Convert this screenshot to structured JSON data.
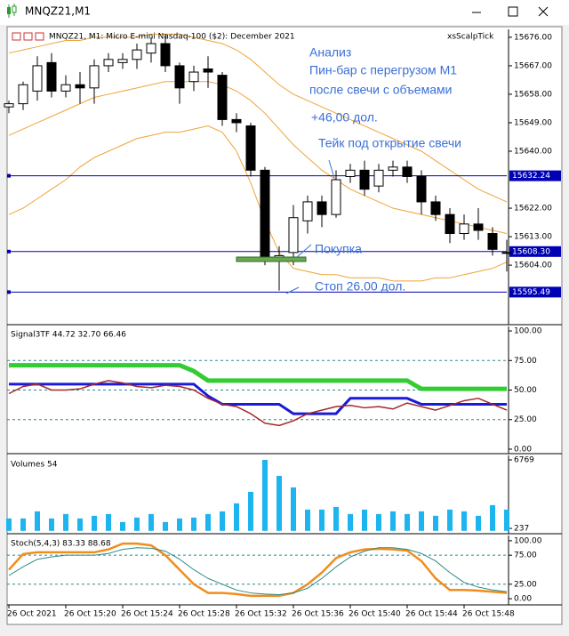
{
  "window_title": "MNQZ21,M1",
  "chart_data": [
    {
      "type": "candlestick",
      "title": "MNQZ21, M1:  Micro E-mini Nasdaq-100 ($2): December 2021",
      "indicator_label": "xsScalpTick",
      "open": [
        15654,
        15655,
        15659,
        15668,
        15659,
        15661,
        15660,
        15667,
        15668,
        15669,
        15671,
        15674,
        15667,
        15662,
        15666,
        15664,
        15650,
        15648,
        15634,
        15606,
        15608,
        15618,
        15624,
        15620,
        15632,
        15634,
        15629,
        15634,
        15635,
        15632,
        15624,
        15620,
        15614,
        15617,
        15614,
        15608
      ],
      "high": [
        15656,
        15662,
        15670,
        15671,
        15664,
        15665,
        15669,
        15671,
        15671,
        15674,
        15676,
        15677,
        15668,
        15667,
        15670,
        15665,
        15652,
        15649,
        15635,
        15610,
        15623,
        15626,
        15626,
        15634,
        15636,
        15637,
        15636,
        15637,
        15637,
        15634,
        15626,
        15622,
        15620,
        15622,
        15616,
        15612
      ],
      "low": [
        15652,
        15653,
        15656,
        15657,
        15657,
        15655,
        15655,
        15665,
        15666,
        15666,
        15668,
        15665,
        15655,
        15659,
        15660,
        15648,
        15646,
        15632,
        15604,
        15596,
        15604,
        15614,
        15616,
        15619,
        15630,
        15626,
        15627,
        15632,
        15630,
        15620,
        15618,
        15611,
        15612,
        15612,
        15607,
        15602
      ],
      "close": [
        15655,
        15661,
        15667,
        15659,
        15661,
        15660,
        15667,
        15669,
        15669,
        15672,
        15674,
        15667,
        15660,
        15665,
        15665,
        15650,
        15649,
        15634,
        15606,
        15607,
        15619,
        15624,
        15620,
        15631,
        15634,
        15628,
        15634,
        15635,
        15632,
        15624,
        15620,
        15614,
        15617,
        15615,
        15609,
        15608
      ],
      "up_color": "#ffffff",
      "down_color": "#000000",
      "series": [
        {
          "color": "#eea43a",
          "values": [
            15671,
            15672,
            15673,
            15674,
            15675,
            15675,
            15676,
            15676,
            15676,
            15676,
            15677,
            15677,
            15677,
            15676,
            15675,
            15674,
            15672,
            15669,
            15665,
            15661,
            15658,
            15656,
            15654,
            15652,
            15650,
            15648,
            15646,
            15644,
            15642,
            15640,
            15637,
            15634,
            15631,
            15628,
            15626,
            15624
          ]
        },
        {
          "color": "#eea43a",
          "values": [
            15645,
            15647,
            15649,
            15651,
            15653,
            15655,
            15657,
            15658,
            15659,
            15660,
            15661,
            15662,
            15662,
            15662,
            15662,
            15661,
            15659,
            15656,
            15652,
            15647,
            15642,
            15638,
            15634,
            15631,
            15628,
            15626,
            15624,
            15622,
            15621,
            15620,
            15619,
            15618,
            15617,
            15616,
            15615,
            15614
          ]
        },
        {
          "color": "#eea43a",
          "values": [
            15620,
            15622,
            15625,
            15628,
            15631,
            15635,
            15638,
            15640,
            15642,
            15644,
            15645,
            15646,
            15646,
            15647,
            15648,
            15646,
            15640,
            15630,
            15618,
            15608,
            15603,
            15602,
            15601,
            15601,
            15600,
            15600,
            15600,
            15599,
            15599,
            15599,
            15600,
            15600,
            15601,
            15602,
            15603,
            15605
          ]
        }
      ],
      "levels": [
        {
          "value": 15632.24,
          "label": "15632.24"
        },
        {
          "value": 15608.3,
          "label": "15608.30"
        },
        {
          "value": 15595.49,
          "label": "15595.49"
        }
      ],
      "level_color": "#0000b4",
      "ylim": [
        15585.2,
        15678.5
      ],
      "yticks": [
        {
          "value": 15676,
          "label": "15676.00"
        },
        {
          "value": 15667,
          "label": "15667.00"
        },
        {
          "value": 15658,
          "label": "15658.00"
        },
        {
          "value": 15649,
          "label": "15649.00"
        },
        {
          "value": 15640,
          "label": "15640.00"
        },
        {
          "value": 15622,
          "label": "15622.00"
        },
        {
          "value": 15613,
          "label": "15613.00"
        },
        {
          "value": 15604,
          "label": "15604.00"
        }
      ],
      "annotations": [
        "Анализ",
        "Пин-бар с перегрузом М1",
        "после свечи с объемами",
        "+46,00 дол.",
        "Тейк под открытие свечи",
        "Покупка",
        "Стоп 26.00 дол."
      ]
    },
    {
      "type": "line",
      "title": "Signal3TF 44.72 32.70 66.46",
      "series": [
        {
          "color": "#33cc33",
          "width": 5,
          "values": [
            71,
            71,
            71,
            71,
            71,
            71,
            71,
            71,
            71,
            71,
            71,
            71,
            71,
            66,
            58,
            58,
            58,
            58,
            58,
            58,
            58,
            58,
            58,
            58,
            58,
            58,
            58,
            58,
            58,
            51,
            51,
            51,
            51,
            51,
            51,
            51
          ]
        },
        {
          "color": "#1a1ad8",
          "width": 3,
          "values": [
            55,
            55,
            55,
            55,
            55,
            55,
            55,
            55,
            55,
            55,
            55,
            55,
            55,
            55,
            45,
            38,
            38,
            38,
            38,
            38,
            30,
            30,
            30,
            30,
            43,
            43,
            43,
            43,
            43,
            38,
            38,
            38,
            38,
            38,
            38,
            38
          ]
        },
        {
          "color": "#a52a2a",
          "width": 1.5,
          "values": [
            47,
            53,
            55,
            50,
            50,
            51,
            55,
            58,
            56,
            53,
            52,
            54,
            53,
            50,
            43,
            38,
            36,
            30,
            22,
            20,
            24,
            30,
            33,
            36,
            37,
            35,
            36,
            34,
            39,
            36,
            33,
            37,
            41,
            43,
            38,
            33
          ]
        }
      ],
      "ylim": [
        -3.8,
        103.8
      ],
      "yticks": [
        {
          "value": 100,
          "label": "100.00"
        },
        {
          "value": 75,
          "label": "75.00"
        },
        {
          "value": 50,
          "label": "50.00"
        },
        {
          "value": 25,
          "label": "25.00"
        },
        {
          "value": 0,
          "label": "0.00"
        }
      ],
      "grid": [
        75,
        50,
        25
      ]
    },
    {
      "type": "bar",
      "title": "Volumes 54",
      "color": "#1eb4f0",
      "values": [
        1184,
        1184,
        1861,
        1184,
        1607,
        1184,
        1438,
        1607,
        846,
        1269,
        1607,
        846,
        1184,
        1269,
        1607,
        1861,
        2623,
        3722,
        6769,
        5245,
        4145,
        2030,
        2030,
        2284,
        1607,
        2030,
        1607,
        1861,
        1607,
        1861,
        1438,
        2030,
        1861,
        1438,
        2453,
        2030
      ],
      "ylim": [
        -270,
        7193
      ],
      "yticks": [
        6769,
        237
      ]
    },
    {
      "type": "line",
      "title": "Stoch(5,4,3) 83.33 88.68",
      "series": [
        {
          "color": "#f28c1b",
          "width": 2.5,
          "values": [
            50,
            77,
            80,
            80,
            80,
            80,
            80,
            85,
            95,
            95,
            92,
            75,
            50,
            25,
            10,
            10,
            8,
            5,
            5,
            5,
            10,
            25,
            45,
            70,
            80,
            85,
            86,
            85,
            83,
            65,
            35,
            15,
            15,
            14,
            12,
            10
          ]
        },
        {
          "color": "#2a8a8a",
          "width": 1,
          "values": [
            40,
            55,
            68,
            72,
            75,
            75,
            75,
            78,
            85,
            88,
            87,
            82,
            68,
            50,
            35,
            25,
            15,
            10,
            8,
            7,
            10,
            18,
            35,
            55,
            72,
            82,
            88,
            88,
            85,
            78,
            65,
            45,
            28,
            20,
            15,
            12
          ]
        }
      ],
      "ylim": [
        -10.6,
        109
      ],
      "yticks": [
        {
          "value": 100,
          "label": "100.00"
        },
        {
          "value": 75,
          "label": "75.00"
        },
        {
          "value": 25,
          "label": "25.00"
        },
        {
          "value": 0,
          "label": "0.00"
        }
      ],
      "grid": [
        75,
        25
      ],
      "categories": [
        "26 Oct 2021",
        null,
        null,
        null,
        "26 Oct 15:20",
        null,
        null,
        null,
        "26 Oct 15:24",
        null,
        null,
        null,
        "26 Oct 15:28",
        null,
        null,
        null,
        "26 Oct 15:32",
        null,
        null,
        null,
        "26 Oct 15:36",
        null,
        null,
        null,
        "26 Oct 15:40",
        null,
        null,
        null,
        "26 Oct 15:44",
        null,
        null,
        null,
        "26 Oct 15:48",
        null,
        null,
        null
      ]
    }
  ]
}
